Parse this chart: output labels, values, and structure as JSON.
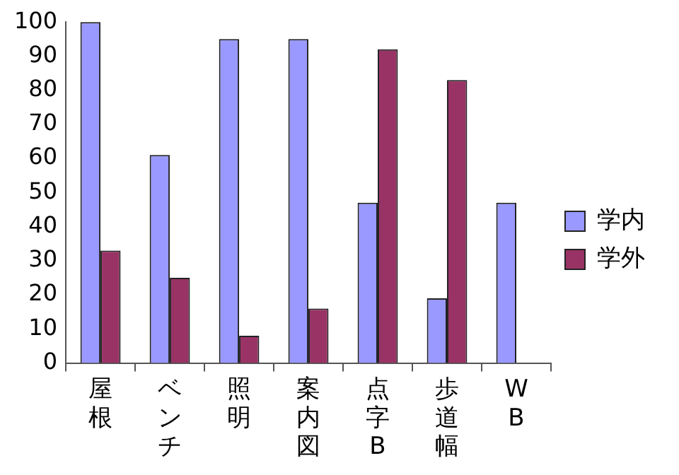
{
  "chart_data": {
    "type": "bar",
    "categories": [
      "屋根",
      "ベンチ",
      "照明",
      "案内図",
      "点字B",
      "歩道幅",
      "WB"
    ],
    "series": [
      {
        "name": "学内",
        "color": "#9999ff",
        "values": [
          100,
          61,
          95,
          95,
          47,
          19,
          47
        ]
      },
      {
        "name": "学外",
        "color": "#993366",
        "values": [
          33,
          25,
          8,
          16,
          92,
          83,
          null
        ]
      }
    ],
    "ylim": [
      0,
      100
    ],
    "yticks": [
      0,
      10,
      20,
      30,
      40,
      50,
      60,
      70,
      80,
      90,
      100
    ],
    "grid": false,
    "legend": "right"
  }
}
